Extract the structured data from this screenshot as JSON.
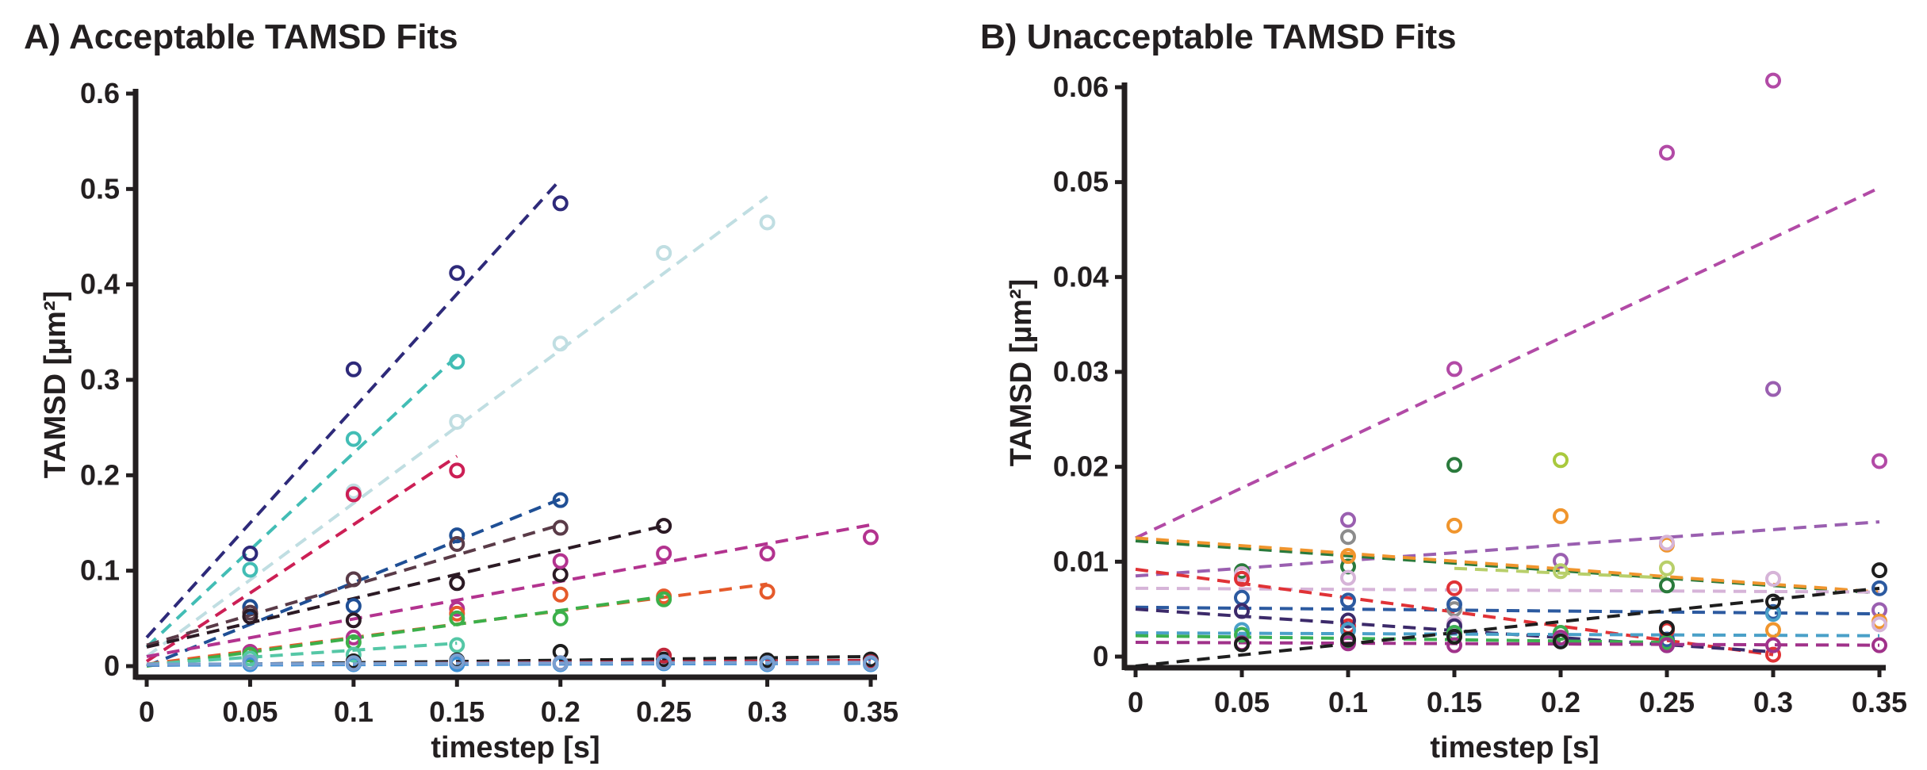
{
  "chart_data": [
    {
      "type": "scatter",
      "panel_title": "A) Acceptable TAMSD Fits",
      "xlabel": "timestep [s]",
      "ylabel": "TAMSD [µm²]",
      "xlim": [
        0,
        0.35
      ],
      "ylim": [
        0,
        0.6
      ],
      "xticks": [
        "0",
        "0.05",
        "0.1",
        "0.15",
        "0.2",
        "0.25",
        "0.3",
        "0.35"
      ],
      "yticks": [
        "0",
        "0.1",
        "0.2",
        "0.3",
        "0.4",
        "0.5",
        "0.6"
      ],
      "grid": false,
      "series": [
        {
          "color": "#2e2a7a",
          "x": [
            0.05,
            0.1,
            0.15,
            0.2
          ],
          "y": [
            0.118,
            0.311,
            0.412,
            0.485
          ],
          "fit": [
            [
              0,
              0.03
            ],
            [
              0.2,
              0.51
            ]
          ]
        },
        {
          "color": "#42bdb5",
          "x": [
            0.05,
            0.1,
            0.15
          ],
          "y": [
            0.101,
            0.238,
            0.319
          ],
          "fit": [
            [
              0,
              0.02
            ],
            [
              0.15,
              0.325
            ]
          ]
        },
        {
          "color": "#c0dee2",
          "x": [
            0.1,
            0.15,
            0.2,
            0.25,
            0.3
          ],
          "y": [
            0.183,
            0.256,
            0.338,
            0.433,
            0.465
          ],
          "fit": [
            [
              0,
              0.01
            ],
            [
              0.3,
              0.492
            ]
          ]
        },
        {
          "color": "#cc1f55",
          "x": [
            0.1,
            0.15
          ],
          "y": [
            0.18,
            0.205
          ],
          "fit": [
            [
              0,
              0.005
            ],
            [
              0.15,
              0.22
            ]
          ]
        },
        {
          "color": "#1f4f95",
          "x": [
            0.05,
            0.1,
            0.15,
            0.2
          ],
          "y": [
            0.062,
            0.063,
            0.137,
            0.174
          ],
          "fit": [
            [
              0,
              0.0
            ],
            [
              0.2,
              0.175
            ]
          ]
        },
        {
          "color": "#5a3b48",
          "x": [
            0.05,
            0.1,
            0.15,
            0.2
          ],
          "y": [
            0.056,
            0.091,
            0.128,
            0.145
          ],
          "fit": [
            [
              0,
              0.022
            ],
            [
              0.2,
              0.148
            ]
          ]
        },
        {
          "color": "#2b1a24",
          "x": [
            0.05,
            0.1,
            0.15,
            0.2,
            0.25
          ],
          "y": [
            0.052,
            0.048,
            0.087,
            0.096,
            0.147
          ],
          "fit": [
            [
              0,
              0.02
            ],
            [
              0.25,
              0.147
            ]
          ]
        },
        {
          "color": "#b3338f",
          "x": [
            0.05,
            0.1,
            0.15,
            0.2,
            0.25,
            0.3,
            0.35
          ],
          "y": [
            0.015,
            0.03,
            0.06,
            0.11,
            0.118,
            0.118,
            0.135
          ],
          "fit": [
            [
              0,
              0.01
            ],
            [
              0.35,
              0.148
            ]
          ]
        },
        {
          "color": "#e55a2b",
          "x": [
            0.15,
            0.2,
            0.25,
            0.3
          ],
          "y": [
            0.055,
            0.075,
            0.073,
            0.078
          ],
          "fit": [
            [
              0,
              0.002
            ],
            [
              0.3,
              0.086
            ]
          ]
        },
        {
          "color": "#3cb04a",
          "x": [
            0.05,
            0.1,
            0.15,
            0.2,
            0.25
          ],
          "y": [
            0.012,
            0.025,
            0.05,
            0.05,
            0.07
          ],
          "fit": [
            [
              0,
              0.0
            ],
            [
              0.25,
              0.073
            ]
          ]
        },
        {
          "color": "#55c7a6",
          "x": [
            0.05,
            0.1,
            0.15
          ],
          "y": [
            0.008,
            0.012,
            0.022
          ],
          "fit": [
            [
              0,
              0.002
            ],
            [
              0.15,
              0.024
            ]
          ]
        },
        {
          "color": "#1d1d1d",
          "x": [
            0.1,
            0.15,
            0.2,
            0.25,
            0.3,
            0.35
          ],
          "y": [
            0.005,
            0.006,
            0.015,
            0.007,
            0.006,
            0.007
          ],
          "fit": [
            [
              0,
              0.001
            ],
            [
              0.35,
              0.01
            ]
          ]
        },
        {
          "color": "#c0263a",
          "x": [
            0.1,
            0.15,
            0.2,
            0.25,
            0.35
          ],
          "y": [
            0.003,
            0.004,
            0.003,
            0.011,
            0.004
          ],
          "fit": [
            [
              0,
              0.001
            ],
            [
              0.35,
              0.006
            ]
          ]
        },
        {
          "color": "#3a8fd6",
          "x": [
            0.05,
            0.1,
            0.15,
            0.2,
            0.25,
            0.3,
            0.35
          ],
          "y": [
            0.002,
            0.002,
            0.002,
            0.002,
            0.003,
            0.002,
            0.002
          ],
          "fit": [
            [
              0,
              0.001
            ],
            [
              0.35,
              0.003
            ]
          ]
        },
        {
          "color": "#7a9fd0",
          "x": [
            0.05,
            0.1,
            0.15,
            0.2,
            0.25,
            0.3,
            0.35
          ],
          "y": [
            0.004,
            0.003,
            0.005,
            0.003,
            0.004,
            0.003,
            0.003
          ],
          "fit": [
            [
              0,
              0.002
            ],
            [
              0.35,
              0.004
            ]
          ]
        }
      ]
    },
    {
      "type": "scatter",
      "panel_title": "B) Unacceptable TAMSD Fits",
      "xlabel": "timestep [s]",
      "ylabel": "TAMSD [µm²]",
      "xlim": [
        0,
        0.35
      ],
      "ylim": [
        0,
        0.06
      ],
      "xticks": [
        "0",
        "0.05",
        "0.1",
        "0.15",
        "0.2",
        "0.25",
        "0.3",
        "0.35"
      ],
      "yticks": [
        "0",
        "0.01",
        "0.02",
        "0.03",
        "0.04",
        "0.05",
        "0.06"
      ],
      "grid": false,
      "series": [
        {
          "color": "#b24aa6",
          "x": [
            0.15,
            0.25,
            0.3,
            0.35
          ],
          "y": [
            0.0303,
            0.0531,
            0.0607,
            0.0206
          ],
          "fit": [
            [
              0,
              0.0125
            ],
            [
              0.35,
              0.0494
            ]
          ]
        },
        {
          "color": "#9a5fb0",
          "x": [
            0.1,
            0.2,
            0.3,
            0.35
          ],
          "y": [
            0.0144,
            0.0101,
            0.0282,
            0.0049
          ],
          "fit": [
            [
              0,
              0.0085
            ],
            [
              0.35,
              0.0142
            ]
          ]
        },
        {
          "color": "#2a7a3c",
          "x": [
            0.05,
            0.1,
            0.15,
            0.25
          ],
          "y": [
            0.009,
            0.0095,
            0.0202,
            0.0075
          ],
          "fit": [
            [
              0,
              0.0122
            ],
            [
              0.35,
              0.0067
            ]
          ]
        },
        {
          "color": "#a9c93d",
          "x": [
            0.2
          ],
          "y": [
            0.0207
          ],
          "fit": null
        },
        {
          "color": "#f0952d",
          "x": [
            0.1,
            0.15,
            0.2,
            0.25,
            0.3,
            0.35
          ],
          "y": [
            0.0106,
            0.0138,
            0.0148,
            0.0118,
            0.0028,
            0.0037
          ],
          "fit": [
            [
              0,
              0.0125
            ],
            [
              0.35,
              0.0068
            ]
          ]
        },
        {
          "color": "#8c8c8c",
          "x": [
            0.1,
            0.15
          ],
          "y": [
            0.0126,
            0.005
          ],
          "fit": null
        },
        {
          "color": "#b8cf6a",
          "x": [
            0.2,
            0.25
          ],
          "y": [
            0.009,
            0.0093
          ],
          "fit": [
            [
              0.15,
              0.0093
            ],
            [
              0.25,
              0.0083
            ]
          ]
        },
        {
          "color": "#d6b4d8",
          "x": [
            0.05,
            0.1,
            0.15,
            0.25,
            0.3,
            0.35
          ],
          "y": [
            0.0087,
            0.0083,
            0.0035,
            0.012,
            0.0082,
            0.0034
          ],
          "fit": [
            [
              0,
              0.0072
            ],
            [
              0.35,
              0.0068
            ]
          ]
        },
        {
          "color": "#2c5aa0",
          "x": [
            0.05,
            0.1,
            0.15,
            0.25,
            0.3,
            0.35
          ],
          "y": [
            0.0062,
            0.0059,
            0.0055,
            0.0018,
            0.0047,
            0.0072
          ],
          "fit": [
            [
              0,
              0.0052
            ],
            [
              0.35,
              0.0045
            ]
          ]
        },
        {
          "color": "#e03236",
          "x": [
            0.05,
            0.1,
            0.15,
            0.2,
            0.25,
            0.3
          ],
          "y": [
            0.0082,
            0.0032,
            0.0072,
            0.0025,
            0.0028,
            0.0002
          ],
          "fit": [
            [
              0,
              0.0092
            ],
            [
              0.3,
              0.0002
            ]
          ]
        },
        {
          "color": "#3c2a6a",
          "x": [
            0.05,
            0.1,
            0.15,
            0.2
          ],
          "y": [
            0.0048,
            0.0038,
            0.0032,
            0.0018
          ],
          "fit": [
            [
              0,
              0.005
            ],
            [
              0.3,
              0.0005
            ]
          ]
        },
        {
          "color": "#4aa0c8",
          "x": [
            0.05,
            0.1,
            0.15,
            0.2,
            0.25,
            0.3
          ],
          "y": [
            0.0028,
            0.0028,
            0.0025,
            0.0018,
            0.0012,
            0.0045
          ],
          "fit": [
            [
              0,
              0.0025
            ],
            [
              0.35,
              0.0022
            ]
          ]
        },
        {
          "color": "#3bb050",
          "x": [
            0.05,
            0.1,
            0.15,
            0.2,
            0.25
          ],
          "y": [
            0.0023,
            0.0017,
            0.0025,
            0.0025,
            0.0015
          ],
          "fit": [
            [
              0,
              0.0022
            ],
            [
              0.25,
              0.0015
            ]
          ]
        },
        {
          "color": "#a0328a",
          "x": [
            0.05,
            0.1,
            0.15,
            0.2,
            0.25,
            0.3,
            0.35
          ],
          "y": [
            0.0014,
            0.0014,
            0.0012,
            0.002,
            0.0012,
            0.0012,
            0.0012
          ],
          "fit": [
            [
              0,
              0.0015
            ],
            [
              0.35,
              0.0012
            ]
          ]
        },
        {
          "color": "#1e1e1e",
          "x": [
            0.05,
            0.1,
            0.15,
            0.2,
            0.25,
            0.3,
            0.35
          ],
          "y": [
            0.0013,
            0.0018,
            0.0021,
            0.0016,
            0.003,
            0.0058,
            0.0091
          ],
          "fit": [
            [
              0,
              -0.001
            ],
            [
              0.35,
              0.0072
            ]
          ]
        }
      ]
    }
  ]
}
